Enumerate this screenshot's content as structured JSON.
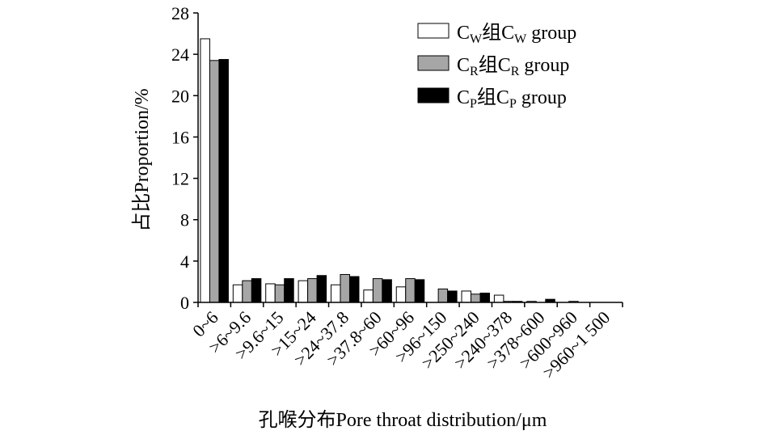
{
  "chart_data": {
    "type": "bar",
    "xlabel": "孔喉分布Pore throat distribution/μm",
    "ylabel": "占比Proportion/%",
    "ylim": [
      0,
      28
    ],
    "yticks": [
      0,
      4,
      8,
      12,
      16,
      20,
      24,
      28
    ],
    "grid": false,
    "legend_position": "top-right",
    "categories": [
      "0~6",
      ">6~9.6",
      ">9.6~15",
      ">15~24",
      ">24~37.8",
      ">37.8~60",
      ">60~96",
      ">96~150",
      ">250~240",
      ">240~378",
      ">378~600",
      ">600~960",
      ">960~1 500"
    ],
    "series": [
      {
        "base": "C",
        "sub": "W",
        "mid": "组",
        "tail": " group",
        "color": "#ffffff",
        "values": [
          25.5,
          1.7,
          1.8,
          2.1,
          1.7,
          1.2,
          1.5,
          0,
          1.1,
          0.7,
          0.1,
          0,
          0
        ]
      },
      {
        "base": "C",
        "sub": "R",
        "mid": "组",
        "tail": " group",
        "color": "#a6a6a6",
        "values": [
          23.4,
          2.1,
          1.7,
          2.3,
          2.7,
          2.3,
          2.3,
          1.3,
          0.8,
          0.1,
          0,
          0.1,
          0
        ]
      },
      {
        "base": "C",
        "sub": "P",
        "mid": "组",
        "tail": " group",
        "color": "#000000",
        "values": [
          23.5,
          2.3,
          2.3,
          2.6,
          2.5,
          2.2,
          2.2,
          1.1,
          0.9,
          0.1,
          0.3,
          0,
          0
        ]
      }
    ]
  }
}
